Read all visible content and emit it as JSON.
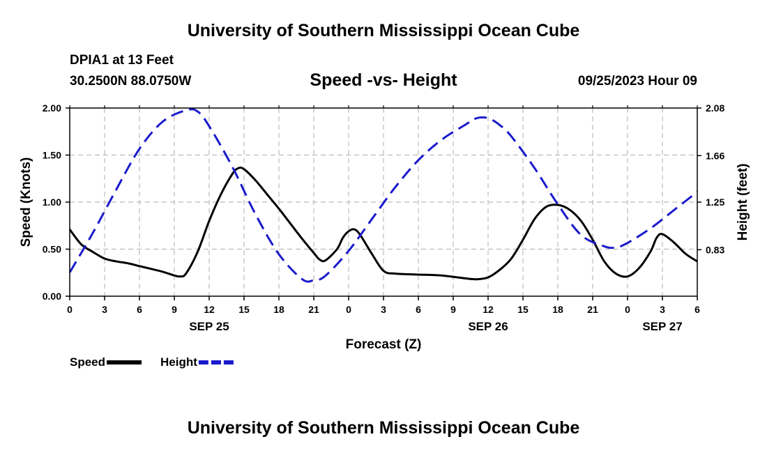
{
  "header": {
    "title": "University of Southern Mississippi Ocean Cube",
    "station": "DPIA1 at 13 Feet",
    "coords": "30.2500N  88.0750W",
    "subtitle": "Speed -vs- Height",
    "datetime": "09/25/2023 Hour 09"
  },
  "footer": {
    "title": "University of Southern Mississippi Ocean Cube"
  },
  "colors": {
    "speed": "#000000",
    "height": "#1a1acc",
    "grid": "#bbbbbb"
  },
  "chart_data": {
    "type": "line",
    "title": "Speed -vs- Height",
    "xlabel": "Forecast (Z)",
    "ylabel": "Speed (Knots)",
    "y2label": "Height (feet)",
    "xlim": [
      0,
      54
    ],
    "ylim": [
      0,
      2
    ],
    "y2lim": [
      0.42,
      2.08
    ],
    "x_ticks": [
      0,
      3,
      6,
      9,
      12,
      15,
      18,
      21,
      24,
      27,
      30,
      33,
      36,
      39,
      42,
      45,
      48,
      51,
      54
    ],
    "x_tick_labels": [
      "0",
      "3",
      "6",
      "9",
      "12",
      "15",
      "18",
      "21",
      "0",
      "3",
      "6",
      "9",
      "12",
      "15",
      "18",
      "21",
      "0",
      "3",
      "6"
    ],
    "date_labels": [
      {
        "x": 12,
        "label": "SEP 25"
      },
      {
        "x": 36,
        "label": "SEP 26"
      },
      {
        "x": 51,
        "label": "SEP 27"
      }
    ],
    "y_ticks": [
      0,
      0.5,
      1.0,
      1.5,
      2.0
    ],
    "y_tick_labels": [
      "0.00",
      "0.50",
      "1.00",
      "1.50",
      "2.00"
    ],
    "y2_ticks": [
      0.83,
      1.25,
      1.66,
      2.08
    ],
    "y2_tick_labels": [
      "0.83",
      "1.25",
      "1.66",
      "2.08"
    ],
    "series": [
      {
        "name": "Speed",
        "axis": "left",
        "style": "solid",
        "x": [
          0,
          1,
          2,
          3,
          4,
          5,
          6,
          7,
          8,
          9,
          9.5,
          10,
          11,
          12,
          13,
          14,
          14.5,
          15,
          16,
          17,
          18,
          19,
          20,
          21,
          21.5,
          22,
          23,
          23.5,
          24,
          24.5,
          25,
          26,
          27,
          28,
          30,
          32,
          34,
          35,
          36,
          37,
          38,
          39,
          40,
          41,
          42,
          43,
          44,
          45,
          46,
          47,
          48,
          49,
          50,
          50.5,
          51,
          52,
          53,
          54
        ],
        "values": [
          0.71,
          0.55,
          0.47,
          0.4,
          0.37,
          0.35,
          0.32,
          0.29,
          0.26,
          0.22,
          0.21,
          0.24,
          0.47,
          0.8,
          1.08,
          1.3,
          1.36,
          1.35,
          1.23,
          1.08,
          0.93,
          0.77,
          0.61,
          0.46,
          0.39,
          0.38,
          0.5,
          0.62,
          0.69,
          0.71,
          0.65,
          0.45,
          0.27,
          0.24,
          0.23,
          0.22,
          0.19,
          0.18,
          0.2,
          0.28,
          0.4,
          0.6,
          0.82,
          0.95,
          0.97,
          0.92,
          0.8,
          0.6,
          0.37,
          0.24,
          0.21,
          0.3,
          0.48,
          0.62,
          0.66,
          0.57,
          0.45,
          0.37
        ]
      },
      {
        "name": "Height",
        "axis": "right",
        "style": "dashed",
        "x": [
          0,
          2,
          4,
          6,
          8,
          10,
          11,
          12,
          14,
          16,
          18,
          20,
          21,
          22,
          24,
          26,
          28,
          30,
          32,
          34,
          35,
          36,
          37,
          38,
          40,
          42,
          44,
          46,
          47,
          48,
          50,
          52,
          54
        ],
        "values": [
          0.63,
          0.98,
          1.36,
          1.72,
          1.96,
          2.06,
          2.05,
          1.92,
          1.56,
          1.14,
          0.79,
          0.57,
          0.56,
          0.6,
          0.82,
          1.1,
          1.38,
          1.62,
          1.8,
          1.93,
          1.99,
          1.99,
          1.93,
          1.83,
          1.55,
          1.23,
          0.96,
          0.86,
          0.85,
          0.89,
          1.02,
          1.18,
          1.34
        ]
      }
    ],
    "legend": [
      {
        "label": "Speed",
        "style": "solid"
      },
      {
        "label": "Height",
        "style": "dashed"
      }
    ]
  }
}
